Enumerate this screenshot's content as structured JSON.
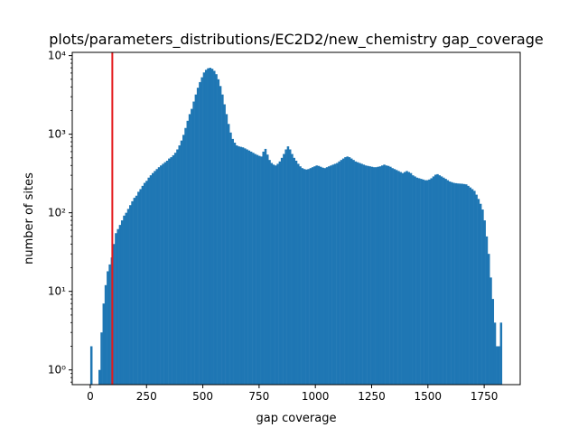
{
  "chart_data": {
    "type": "bar",
    "title": "plots/parameters_distributions/EC2D2/new_chemistry gap_coverage",
    "xlabel": "gap coverage",
    "ylabel": "number of sites",
    "y_scale": "log",
    "xlim": [
      -80,
      1910
    ],
    "ylim": [
      0.65,
      11000
    ],
    "xticks": [
      0,
      250,
      500,
      750,
      1000,
      1250,
      1500,
      1750
    ],
    "xtick_labels": [
      "0",
      "250",
      "500",
      "750",
      "1000",
      "1250",
      "1500",
      "1750"
    ],
    "yticks": [
      1,
      10,
      100,
      1000,
      10000
    ],
    "ytick_labels": [
      "10⁰",
      "10¹",
      "10²",
      "10³",
      "10⁴"
    ],
    "grid": false,
    "bin_width": 9.1,
    "bin_start": 0,
    "values": [
      2,
      0,
      0,
      0,
      1,
      3,
      7,
      12,
      18,
      22,
      27,
      40,
      55,
      62,
      70,
      80,
      92,
      100,
      112,
      125,
      140,
      155,
      165,
      185,
      200,
      220,
      240,
      255,
      280,
      300,
      320,
      340,
      360,
      380,
      400,
      420,
      440,
      460,
      490,
      510,
      540,
      580,
      640,
      720,
      830,
      980,
      1200,
      1480,
      1800,
      2100,
      2600,
      3200,
      3900,
      4600,
      5300,
      6100,
      6600,
      6900,
      7000,
      6800,
      6400,
      5800,
      5000,
      4100,
      3200,
      2400,
      1800,
      1350,
      1050,
      870,
      780,
      720,
      700,
      690,
      680,
      660,
      640,
      620,
      600,
      580,
      560,
      545,
      530,
      520,
      600,
      650,
      550,
      470,
      430,
      410,
      400,
      420,
      450,
      500,
      560,
      640,
      700,
      640,
      560,
      500,
      460,
      420,
      390,
      370,
      360,
      355,
      360,
      370,
      380,
      390,
      400,
      395,
      385,
      375,
      370,
      380,
      390,
      400,
      410,
      420,
      430,
      450,
      470,
      490,
      510,
      520,
      510,
      490,
      470,
      450,
      440,
      430,
      420,
      410,
      400,
      395,
      390,
      385,
      380,
      380,
      385,
      390,
      400,
      410,
      400,
      395,
      385,
      370,
      360,
      350,
      340,
      330,
      320,
      330,
      340,
      330,
      320,
      300,
      290,
      280,
      275,
      270,
      265,
      260,
      260,
      265,
      275,
      290,
      305,
      310,
      300,
      290,
      280,
      270,
      260,
      250,
      245,
      240,
      238,
      236,
      235,
      234,
      232,
      230,
      220,
      210,
      200,
      190,
      170,
      150,
      130,
      110,
      80,
      50,
      30,
      15,
      8,
      4,
      2,
      2,
      4
    ],
    "bar_color": "#1f77b4",
    "vline": {
      "x": 98,
      "color": "#e41a1c"
    }
  }
}
